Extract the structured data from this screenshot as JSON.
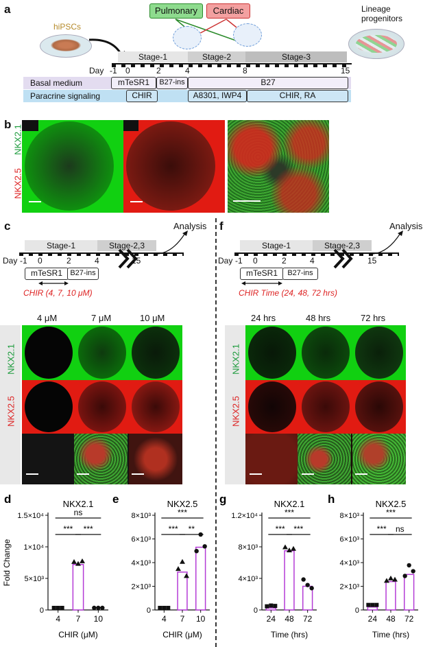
{
  "panel_a": {
    "label": "a",
    "hipscs": "hiPSCs",
    "pulmonary": "Pulmonary",
    "cardiac": "Cardiac",
    "lineage": "Lineage",
    "progenitors": "progenitors",
    "stage1": "Stage-1",
    "stage2": "Stage-2",
    "stage3": "Stage-3",
    "day": "Day",
    "days": [
      "-1",
      "0",
      "2",
      "4",
      "8",
      "15"
    ],
    "basal": "Basal medium",
    "paracrine": "Paracrine signaling",
    "mtesr1": "mTeSR1",
    "b27ins": "B27-ins",
    "b27": "B27",
    "chir": "CHIR",
    "a8301": "A8301, IWP4",
    "chirra": "CHIR, RA"
  },
  "panel_b": {
    "label": "b",
    "nkx21": "NKX2.1",
    "nkx25": "NKX2.5"
  },
  "panel_c": {
    "label": "c",
    "analysis": "Analysis",
    "stage1": "Stage-1",
    "stage23": "Stage-2,3",
    "day": "Day",
    "days": [
      "-1",
      "0",
      "2",
      "4",
      "15"
    ],
    "mtesr1": "mTeSR1",
    "b27ins": "B27-ins",
    "condition": "CHIR (4, 7, 10 μM)",
    "cols": [
      "4 μM",
      "7 μM",
      "10 μM"
    ],
    "nkx21": "NKX2.1",
    "nkx25": "NKX2.5"
  },
  "panel_f": {
    "label": "f",
    "analysis": "Analysis",
    "stage1": "Stage-1",
    "stage23": "Stage-2,3",
    "day": "Day",
    "days": [
      "-1",
      "0",
      "2",
      "4",
      "15"
    ],
    "mtesr1": "mTeSR1",
    "b27ins": "B27-ins",
    "condition": "CHIR Time (24, 48, 72 hrs)",
    "cols": [
      "24 hrs",
      "48 hrs",
      "72 hrs"
    ],
    "nkx21": "NKX2.1",
    "nkx25": "NKX2.5"
  },
  "chart_data": [
    {
      "panel": "d",
      "type": "bar",
      "title": "NKX2.1",
      "ylabel": "Fold Change",
      "xlabel": "CHIR (μM)",
      "categories": [
        "4",
        "7",
        "10"
      ],
      "values": [
        0,
        7200,
        0
      ],
      "points": [
        [
          0,
          0,
          0
        ],
        [
          7300,
          7000,
          7400
        ],
        [
          0,
          0,
          0
        ]
      ],
      "ylim": [
        0,
        15000
      ],
      "yticks": [
        "0",
        "5×10³",
        "1×10⁴",
        "1.5×10⁴"
      ],
      "ytick_values": [
        0,
        5000,
        10000,
        15000
      ],
      "significance": [
        {
          "from": 0,
          "to": 1,
          "label": "***"
        },
        {
          "from": 1,
          "to": 2,
          "label": "***"
        },
        {
          "from": 0,
          "to": 2,
          "label": "ns"
        }
      ]
    },
    {
      "panel": "e",
      "type": "bar",
      "title": "NKX2.5",
      "ylabel": "",
      "xlabel": "CHIR (μM)",
      "categories": [
        "4",
        "7",
        "10"
      ],
      "values": [
        0,
        3200,
        5300
      ],
      "points": [
        [
          0,
          0,
          0
        ],
        [
          3300,
          3900,
          2700
        ],
        [
          4800,
          6200,
          5200
        ]
      ],
      "ylim": [
        0,
        8000
      ],
      "yticks": [
        "0",
        "2×10³",
        "4×10³",
        "6×10³",
        "8×10³"
      ],
      "ytick_values": [
        0,
        2000,
        4000,
        6000,
        8000
      ],
      "significance": [
        {
          "from": 0,
          "to": 1,
          "label": "***"
        },
        {
          "from": 1,
          "to": 2,
          "label": "**"
        },
        {
          "from": 0,
          "to": 2,
          "label": "***"
        }
      ]
    },
    {
      "panel": "g",
      "type": "bar",
      "title": "NKX2.1",
      "ylabel": "",
      "xlabel": "Time (hrs)",
      "categories": [
        "24",
        "48",
        "72"
      ],
      "values": [
        250,
        7500,
        3000
      ],
      "points": [
        [
          200,
          300,
          250
        ],
        [
          7700,
          7300,
          7500
        ],
        [
          3600,
          2900,
          2500
        ]
      ],
      "ylim": [
        0,
        12000
      ],
      "yticks": [
        "0",
        "4×10³",
        "8×10³",
        "1.2×10⁴"
      ],
      "ytick_values": [
        0,
        4000,
        8000,
        12000
      ],
      "significance": [
        {
          "from": 0,
          "to": 1,
          "label": "***"
        },
        {
          "from": 1,
          "to": 2,
          "label": "***"
        },
        {
          "from": 0,
          "to": 2,
          "label": "***"
        }
      ]
    },
    {
      "panel": "h",
      "type": "bar",
      "title": "NKX2.5",
      "ylabel": "",
      "xlabel": "Time (hrs)",
      "categories": [
        "24",
        "48",
        "72"
      ],
      "values": [
        250,
        2400,
        3000
      ],
      "points": [
        [
          250,
          250,
          250
        ],
        [
          2300,
          2500,
          2400
        ],
        [
          2700,
          3600,
          3100
        ]
      ],
      "ylim": [
        0,
        8000
      ],
      "yticks": [
        "0",
        "2×10³",
        "4×10³",
        "6×10³",
        "8×10³"
      ],
      "ytick_values": [
        0,
        2000,
        4000,
        6000,
        8000
      ],
      "significance": [
        {
          "from": 0,
          "to": 1,
          "label": "***"
        },
        {
          "from": 1,
          "to": 2,
          "label": "ns"
        },
        {
          "from": 0,
          "to": 2,
          "label": "***"
        }
      ]
    }
  ]
}
